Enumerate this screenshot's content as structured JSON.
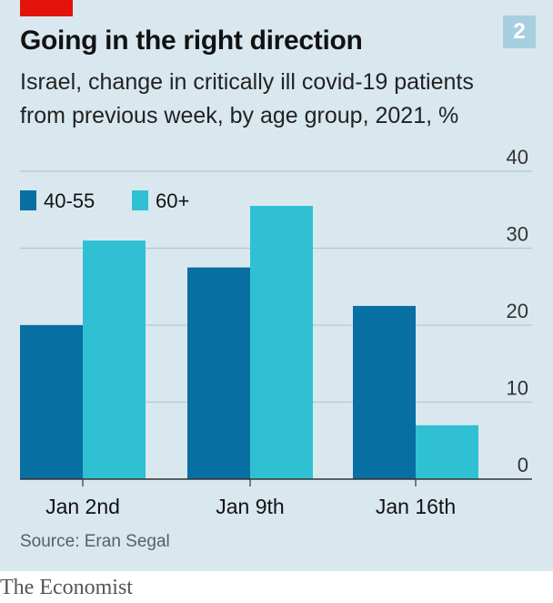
{
  "header": {
    "chart_number": "2",
    "title": "Going in the right direction",
    "subtitle": "Israel, change in critically ill covid-19 patients from previous week, by age group, 2021, %"
  },
  "footer": {
    "source": "Source: Eran Segal",
    "brand": "The Economist"
  },
  "colors": {
    "background": "#d9e8ef",
    "series_40_55": "#076fa1",
    "series_60_plus": "#2fc1d3",
    "gridline": "#b7c6cd",
    "axis": "#333333",
    "brand_red": "#e3120b"
  },
  "chart_data": {
    "type": "bar",
    "categories": [
      "Jan 2nd",
      "Jan 9th",
      "Jan 16th"
    ],
    "series": [
      {
        "name": "40-55",
        "values": [
          20,
          27.5,
          22.5
        ]
      },
      {
        "name": "60+",
        "values": [
          31,
          35.5,
          7
        ]
      }
    ],
    "ylim": [
      0,
      40
    ],
    "yticks": [
      0,
      10,
      20,
      30,
      40
    ],
    "grid": true,
    "legend": "top-left",
    "y_axis_side": "right"
  }
}
